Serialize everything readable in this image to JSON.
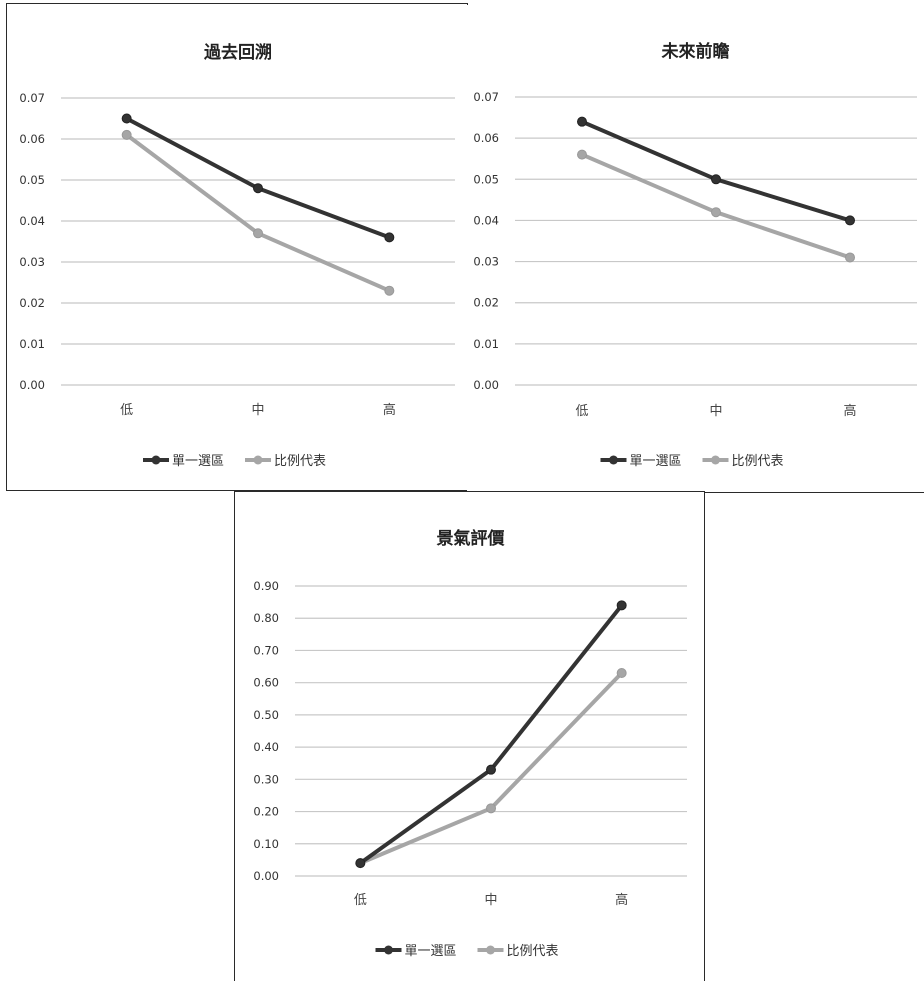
{
  "chart_data": [
    {
      "type": "line",
      "title": "過去回溯",
      "categories": [
        "低",
        "中",
        "高"
      ],
      "series": [
        {
          "name": "單一選區",
          "values": [
            0.065,
            0.048,
            0.036
          ]
        },
        {
          "name": "比例代表",
          "values": [
            0.061,
            0.037,
            0.023
          ]
        }
      ],
      "ylim": [
        0,
        0.07
      ],
      "yticks": [
        "0.00",
        "0.01",
        "0.02",
        "0.03",
        "0.04",
        "0.05",
        "0.06",
        "0.07"
      ],
      "grid": true,
      "legend": "bottom"
    },
    {
      "type": "line",
      "title": "未來前瞻",
      "categories": [
        "低",
        "中",
        "高"
      ],
      "series": [
        {
          "name": "單一選區",
          "values": [
            0.064,
            0.05,
            0.04
          ]
        },
        {
          "name": "比例代表",
          "values": [
            0.056,
            0.042,
            0.031
          ]
        }
      ],
      "ylim": [
        0,
        0.07
      ],
      "yticks": [
        "0.00",
        "0.01",
        "0.02",
        "0.03",
        "0.04",
        "0.05",
        "0.06",
        "0.07"
      ],
      "grid": true,
      "legend": "bottom"
    },
    {
      "type": "line",
      "title": "景氣評價",
      "categories": [
        "低",
        "中",
        "高"
      ],
      "series": [
        {
          "name": "單一選區",
          "values": [
            0.04,
            0.33,
            0.84
          ]
        },
        {
          "name": "比例代表",
          "values": [
            0.04,
            0.21,
            0.63
          ]
        }
      ],
      "ylim": [
        0,
        0.9
      ],
      "yticks": [
        "0.00",
        "0.10",
        "0.20",
        "0.30",
        "0.40",
        "0.50",
        "0.60",
        "0.70",
        "0.80",
        "0.90"
      ],
      "grid": true,
      "legend": "bottom"
    }
  ],
  "colors": {
    "series": [
      "#333333",
      "#a6a6a6"
    ],
    "grid": "#c8c8c8"
  }
}
